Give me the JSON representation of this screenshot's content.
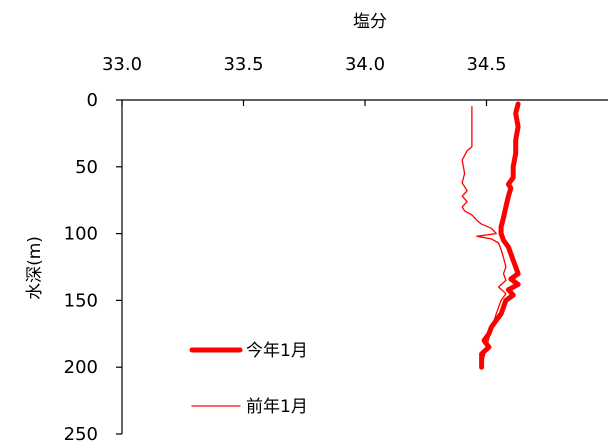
{
  "chart_data": {
    "type": "line",
    "title": "",
    "xlabel": "塩分",
    "ylabel": "水深(m)",
    "x_axis_position": "top",
    "y_axis_inverted": true,
    "xlim": [
      33.0,
      35.0
    ],
    "ylim": [
      0,
      250
    ],
    "xticks": [
      "33.0",
      "33.5",
      "34.0",
      "34.5"
    ],
    "yticks": [
      "0",
      "50",
      "100",
      "150",
      "200",
      "250"
    ],
    "grid": false,
    "legend_position": "bottom-left",
    "series": [
      {
        "name": "今年1月",
        "color": "#ff0000",
        "style": "thick",
        "points": [
          [
            34.63,
            3
          ],
          [
            34.62,
            10
          ],
          [
            34.63,
            20
          ],
          [
            34.62,
            30
          ],
          [
            34.62,
            40
          ],
          [
            34.61,
            50
          ],
          [
            34.61,
            58
          ],
          [
            34.59,
            63
          ],
          [
            34.6,
            66
          ],
          [
            34.59,
            72
          ],
          [
            34.58,
            80
          ],
          [
            34.57,
            88
          ],
          [
            34.56,
            95
          ],
          [
            34.56,
            100
          ],
          [
            34.57,
            105
          ],
          [
            34.59,
            110
          ],
          [
            34.6,
            115
          ],
          [
            34.61,
            120
          ],
          [
            34.62,
            125
          ],
          [
            34.63,
            130
          ],
          [
            34.6,
            134
          ],
          [
            34.63,
            138
          ],
          [
            34.59,
            142
          ],
          [
            34.61,
            146
          ],
          [
            34.58,
            150
          ],
          [
            34.57,
            155
          ],
          [
            34.56,
            160
          ],
          [
            34.54,
            165
          ],
          [
            34.52,
            170
          ],
          [
            34.51,
            175
          ],
          [
            34.49,
            180
          ],
          [
            34.51,
            185
          ],
          [
            34.48,
            190
          ],
          [
            34.48,
            195
          ],
          [
            34.48,
            200
          ]
        ]
      },
      {
        "name": "前年1月",
        "color": "#ff0000",
        "style": "thin",
        "points": [
          [
            34.44,
            5
          ],
          [
            34.44,
            20
          ],
          [
            34.44,
            35
          ],
          [
            34.42,
            38
          ],
          [
            34.4,
            45
          ],
          [
            34.41,
            55
          ],
          [
            34.4,
            62
          ],
          [
            34.42,
            68
          ],
          [
            34.4,
            72
          ],
          [
            34.42,
            76
          ],
          [
            34.4,
            80
          ],
          [
            34.41,
            83
          ],
          [
            34.44,
            86
          ],
          [
            34.46,
            90
          ],
          [
            34.48,
            93
          ],
          [
            34.52,
            96
          ],
          [
            34.54,
            100
          ],
          [
            34.46,
            102
          ],
          [
            34.52,
            104
          ],
          [
            34.55,
            107
          ],
          [
            34.56,
            112
          ],
          [
            34.57,
            118
          ],
          [
            34.58,
            125
          ],
          [
            34.57,
            130
          ],
          [
            34.58,
            135
          ],
          [
            34.55,
            140
          ],
          [
            34.58,
            145
          ],
          [
            34.56,
            150
          ],
          [
            34.55,
            155
          ],
          [
            34.54,
            160
          ],
          [
            34.53,
            166
          ],
          [
            34.52,
            172
          ],
          [
            34.51,
            178
          ],
          [
            34.5,
            185
          ],
          [
            34.49,
            192
          ],
          [
            34.48,
            198
          ]
        ]
      }
    ]
  }
}
